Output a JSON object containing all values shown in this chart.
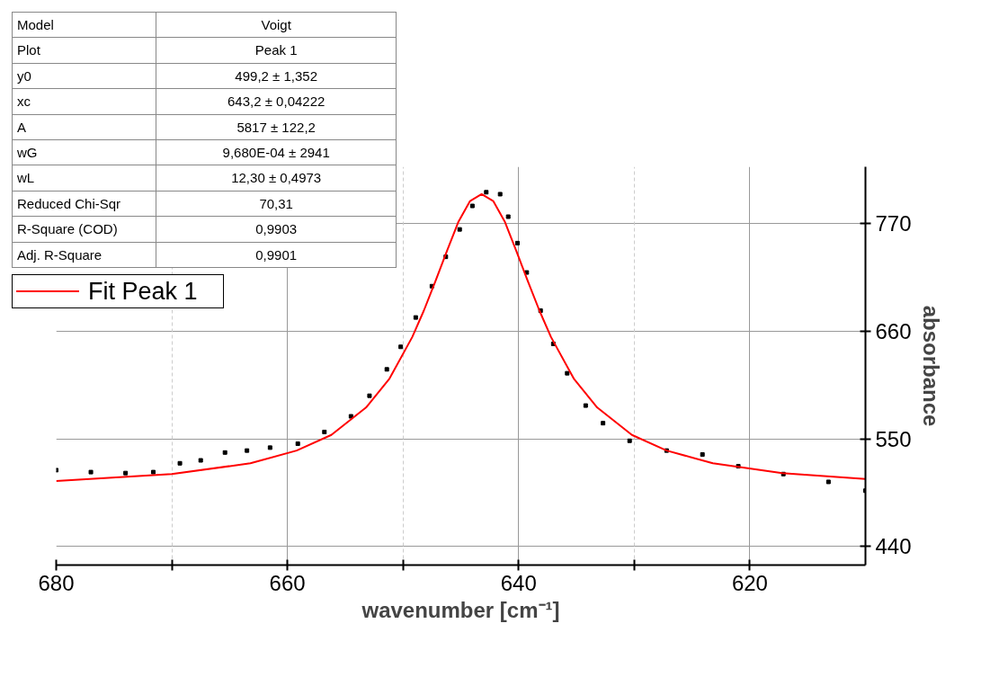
{
  "chart_data": {
    "type": "scatter",
    "xlabel": "wavenumber [cm⁻¹]",
    "ylabel": "absorbance",
    "xlim": [
      680,
      610
    ],
    "ylim": [
      421,
      828
    ],
    "xticks": [
      680,
      {
        "value": 670,
        "label": null
      },
      660,
      {
        "value": 650,
        "label": null
      },
      640,
      {
        "value": 630,
        "label": null
      },
      620
    ],
    "yticks": [
      440,
      550,
      660,
      770
    ],
    "grid": true,
    "legend": "top left",
    "annotations": [
      "Model",
      "Voigt",
      "Plot",
      "Peak 1",
      "y0",
      "499,2 ± 1,352",
      "xc",
      "643,2 ± 0,04222",
      "A",
      "5817 ± 122,2",
      "wG",
      "9,680E-04 ± 2941",
      "wL",
      "12,30 ± 0,4973",
      "Reduced Chi-Sqr",
      "70,31",
      "R-Square (COD)",
      "0,9903",
      "Adj. R-Square",
      "0,9901"
    ],
    "series": [
      {
        "color": "#000000",
        "marker": "square",
        "x": [
          680,
          677,
          674,
          671.6,
          669.3,
          667.5,
          665.4,
          663.5,
          661.5,
          659.1,
          656.8,
          654.5,
          652.9,
          651.4,
          650.2,
          648.9,
          647.5,
          646.3,
          645.1,
          644.0,
          642.8,
          641.6,
          640.9,
          640.1,
          639.3,
          638.1,
          637.0,
          635.8,
          634.2,
          632.7,
          630.4,
          627.2,
          624.1,
          621.0,
          617.1,
          613.2,
          610
        ],
        "values": [
          518,
          516,
          515,
          516,
          525,
          528,
          536,
          538,
          541,
          545,
          557,
          573,
          594,
          621,
          644,
          674,
          706,
          736,
          764,
          788,
          802,
          800,
          777,
          750,
          720,
          681,
          647,
          617,
          584,
          566,
          548,
          538,
          534,
          522,
          514,
          506,
          497
        ]
      },
      {
        "type": "line",
        "name": "Fit Peak 1",
        "color": "#ff0000",
        "line_style": "solid",
        "x": [
          680,
          670,
          663.2,
          659.2,
          656.2,
          653.2,
          651.2,
          649.2,
          648.2,
          647.2,
          646.2,
          645.2,
          644.2,
          643.2,
          642.2,
          641.2,
          640.2,
          639.2,
          638.2,
          637.2,
          635.2,
          633.2,
          630.2,
          627.2,
          623.2,
          617.2,
          610
        ],
        "values": [
          507,
          514,
          525,
          538,
          554,
          582,
          611,
          654,
          681,
          711,
          742,
          772,
          793,
          800,
          793,
          772,
          742,
          711,
          681,
          654,
          611,
          582,
          554,
          538,
          525,
          515,
          509
        ]
      }
    ]
  }
}
